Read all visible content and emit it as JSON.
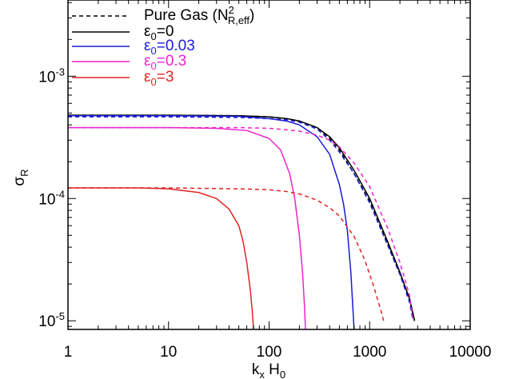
{
  "chart_data": {
    "type": "line",
    "title": "",
    "xscale": "log",
    "yscale": "log",
    "xlim": [
      1,
      10000
    ],
    "ylim": [
      8.5e-06,
      0.0042
    ],
    "xlabel": {
      "base": "k",
      "sub": "x",
      "tail": "H",
      "tail_sub": "0"
    },
    "ylabel": {
      "base": "σ",
      "sub": "R"
    },
    "x_ticks": [
      {
        "value": 1,
        "label": "1"
      },
      {
        "value": 10,
        "label": "10"
      },
      {
        "value": 100,
        "label": "100"
      },
      {
        "value": 1000,
        "label": "1000"
      },
      {
        "value": 10000,
        "label": "10000"
      }
    ],
    "y_ticks": [
      {
        "value": 1e-05,
        "base": "10",
        "exp": "-5"
      },
      {
        "value": 0.0001,
        "base": "10",
        "exp": "-4"
      },
      {
        "value": 0.001,
        "base": "10",
        "exp": "-3"
      }
    ],
    "grid": false,
    "legend": {
      "placement": "top-left",
      "entries": [
        {
          "style": "dashed",
          "color": "#000000",
          "text_color": "#000000",
          "text": "Pure Gas (N",
          "sup": "2",
          "sub": "R,eff",
          "tail": ")"
        },
        {
          "style": "solid",
          "color": "#000000",
          "text_color": "#000000",
          "symbol": "ε",
          "sub": "0",
          "tail": "=0"
        },
        {
          "style": "solid",
          "color": "#1a1adb",
          "text_color": "#1a1adb",
          "symbol": "ε",
          "sub": "0",
          "tail": "=0.03"
        },
        {
          "style": "solid",
          "color": "#ee22cc",
          "text_color": "#ee22cc",
          "symbol": "ε",
          "sub": "0",
          "tail": "=0.3"
        },
        {
          "style": "solid",
          "color": "#e22222",
          "text_color": "#e22222",
          "symbol": "ε",
          "sub": "0",
          "tail": "=3"
        }
      ]
    },
    "series": [
      {
        "color": "#000000",
        "style": "solid",
        "x": [
          1,
          10,
          50,
          100,
          150,
          200,
          300,
          400,
          500,
          700,
          1000,
          1500,
          2000,
          2500,
          2800
        ],
        "y": [
          0.00048,
          0.00048,
          0.000475,
          0.000465,
          0.00045,
          0.00043,
          0.00038,
          0.00032,
          0.00026,
          0.00017,
          0.0001,
          4.5e-05,
          2.5e-05,
          1.5e-05,
          1e-05
        ]
      },
      {
        "color": "#000000",
        "style": "dashed",
        "x": [
          1,
          10,
          50,
          100,
          150,
          200,
          300,
          400,
          500,
          700,
          1000,
          1500,
          2000,
          2500,
          2800
        ],
        "y": [
          0.00048,
          0.00048,
          0.000475,
          0.000465,
          0.00045,
          0.00043,
          0.00038,
          0.00031,
          0.00025,
          0.00016,
          9.5e-05,
          4.3e-05,
          2.4e-05,
          1.5e-05,
          1e-05
        ]
      },
      {
        "color": "#1a1adb",
        "style": "solid",
        "x": [
          1,
          10,
          50,
          100,
          150,
          200,
          300,
          400,
          500,
          550,
          600,
          650,
          680,
          700
        ],
        "y": [
          0.000475,
          0.000475,
          0.00047,
          0.00045,
          0.00043,
          0.0004,
          0.00032,
          0.00023,
          0.00013,
          9e-05,
          5.5e-05,
          2.5e-05,
          1.3e-05,
          8.5e-06
        ]
      },
      {
        "color": "#1a1adb",
        "style": "dashed",
        "x": [
          1,
          10,
          50,
          100,
          150,
          200,
          300,
          400,
          500,
          700,
          1000,
          1500,
          2000,
          2500,
          2700
        ],
        "y": [
          0.000465,
          0.000465,
          0.00046,
          0.00045,
          0.00044,
          0.00042,
          0.00037,
          0.0003,
          0.00024,
          0.00016,
          9.2e-05,
          4.2e-05,
          2.4e-05,
          1.4e-05,
          1e-05
        ]
      },
      {
        "color": "#ee22cc",
        "style": "solid",
        "x": [
          1,
          10,
          30,
          60,
          100,
          130,
          160,
          180,
          200,
          215,
          225,
          230
        ],
        "y": [
          0.00038,
          0.00038,
          0.000375,
          0.00036,
          0.00031,
          0.00025,
          0.00016,
          0.0001,
          5e-05,
          2.5e-05,
          1.3e-05,
          8.5e-06
        ]
      },
      {
        "color": "#ee22cc",
        "style": "dashed",
        "x": [
          1,
          10,
          50,
          100,
          150,
          200,
          300,
          400,
          500,
          700,
          1000,
          1500,
          2000,
          2500,
          2700
        ],
        "y": [
          0.00038,
          0.00038,
          0.00038,
          0.000375,
          0.000365,
          0.000355,
          0.00033,
          0.0003,
          0.000265,
          0.000195,
          0.000125,
          5.8e-05,
          3e-05,
          1.6e-05,
          1e-05
        ]
      },
      {
        "color": "#e22222",
        "style": "solid",
        "x": [
          1,
          5,
          10,
          20,
          30,
          40,
          50,
          55,
          60,
          65,
          68,
          70
        ],
        "y": [
          0.000122,
          0.000122,
          0.00012,
          0.000112,
          0.0001,
          8.2e-05,
          6e-05,
          4.5e-05,
          3e-05,
          1.8e-05,
          1.2e-05,
          8.5e-06
        ]
      },
      {
        "color": "#e22222",
        "style": "dashed",
        "x": [
          1,
          10,
          50,
          100,
          150,
          200,
          300,
          400,
          500,
          700,
          900,
          1100,
          1300,
          1400
        ],
        "y": [
          0.000122,
          0.000122,
          0.00012,
          0.000118,
          0.000114,
          0.000109,
          9.7e-05,
          8.4e-05,
          7.2e-05,
          4.9e-05,
          3.1e-05,
          1.9e-05,
          1.2e-05,
          9.5e-06
        ]
      }
    ]
  }
}
